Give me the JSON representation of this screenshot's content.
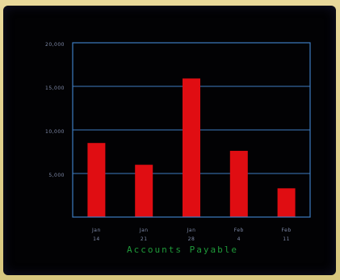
{
  "chart_data": {
    "type": "bar",
    "xlabel": "Accounts Payable",
    "ylabel": "",
    "y_ticks": [
      "20,000",
      "15,000",
      "10,000",
      "5,000"
    ],
    "categories": [
      [
        "Jan",
        "14"
      ],
      [
        "Jan",
        "21"
      ],
      [
        "Jan",
        "28"
      ],
      [
        "Feb",
        "4"
      ],
      [
        "Feb",
        "11"
      ]
    ],
    "values": [
      8500,
      6000,
      15900,
      7600,
      3300
    ],
    "ylim": [
      0,
      20000
    ],
    "grid": true,
    "colors": {
      "bar": "#e00d12",
      "axes": "#3d7cc0",
      "grid": "#3d7cc0",
      "xlabel": "#1f9a3a",
      "ticks": "#7f8aa8"
    }
  }
}
